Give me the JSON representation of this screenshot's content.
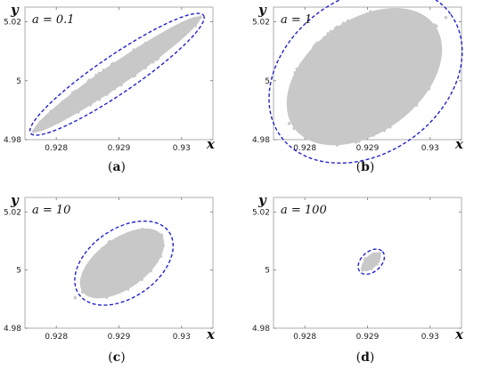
{
  "chart_data": [
    {
      "type": "scatter",
      "annotation": {
        "text": "a = 0.1"
      },
      "caption": {
        "text": "(a)",
        "letter": "a"
      },
      "xlabel": "x",
      "ylabel": "y",
      "xlim": [
        0.9275,
        0.9305
      ],
      "ylim": [
        4.98,
        5.025
      ],
      "xticks": [
        {
          "value": 0.928,
          "label": "0.928"
        },
        {
          "value": 0.929,
          "label": "0.929"
        },
        {
          "value": 0.93,
          "label": "0.93"
        }
      ],
      "yticks": [
        {
          "value": 4.98,
          "label": "4.98"
        },
        {
          "value": 5,
          "label": "5"
        },
        {
          "value": 5.02,
          "label": "5.02"
        }
      ],
      "grid": false,
      "cloud": {
        "center": [
          0.92897,
          5.0022
        ],
        "half_length": [
          0.00133,
          0.0194
        ],
        "half_width": 0.00018,
        "color": "#c8c8c8",
        "outliers": []
      },
      "ellipse": {
        "center": [
          0.92897,
          5.0022
        ],
        "half_length": [
          0.00138,
          0.02
        ],
        "half_width": 0.0003,
        "color": "#2222cc",
        "style": "dashed"
      }
    },
    {
      "type": "scatter",
      "annotation": {
        "text": "a = 1"
      },
      "caption": {
        "text": "(b)",
        "letter": "b"
      },
      "xlabel": "x",
      "ylabel": "y",
      "xlim": [
        0.9275,
        0.9305
      ],
      "ylim": [
        4.98,
        5.025
      ],
      "xticks": [
        {
          "value": 0.928,
          "label": "0.928"
        },
        {
          "value": 0.929,
          "label": "0.929"
        },
        {
          "value": 0.93,
          "label": "0.93"
        }
      ],
      "yticks": [
        {
          "value": 4.98,
          "label": "4.98"
        },
        {
          "value": 5,
          "label": "5"
        },
        {
          "value": 5.02,
          "label": "5.02"
        }
      ],
      "grid": false,
      "cloud": {
        "center": [
          0.92895,
          5.0014
        ],
        "half_length": [
          0.00112,
          0.0175
        ],
        "half_width": 0.0009,
        "color": "#c8c8c8",
        "outliers": [
          [
            0.92775,
            4.9855
          ],
          [
            0.93025,
            5.0215
          ],
          [
            0.9301,
            5.0185
          ]
        ]
      },
      "ellipse": {
        "center": [
          0.92897,
          5.0019
        ],
        "half_length": [
          0.00136,
          0.0206
        ],
        "half_width": 0.00125,
        "color": "#2222cc",
        "style": "dashed"
      }
    },
    {
      "type": "scatter",
      "annotation": {
        "text": "a = 10"
      },
      "caption": {
        "text": "(c)",
        "letter": "c"
      },
      "xlabel": "x",
      "ylabel": "y",
      "xlim": [
        0.9275,
        0.9305
      ],
      "ylim": [
        4.98,
        5.025
      ],
      "xticks": [
        {
          "value": 0.928,
          "label": "0.928"
        },
        {
          "value": 0.929,
          "label": "0.929"
        },
        {
          "value": 0.93,
          "label": "0.93"
        }
      ],
      "yticks": [
        {
          "value": 4.98,
          "label": "4.98"
        },
        {
          "value": 5,
          "label": "5"
        },
        {
          "value": 5.02,
          "label": "5.02"
        }
      ],
      "grid": false,
      "cloud": {
        "center": [
          0.92905,
          5.0023
        ],
        "half_length": [
          0.00063,
          0.0098
        ],
        "half_width": 0.0004,
        "color": "#c8c8c8",
        "outliers": [
          [
            0.9283,
            4.9905
          ]
        ]
      },
      "ellipse": {
        "center": [
          0.92908,
          5.0024
        ],
        "half_length": [
          0.00072,
          0.0107
        ],
        "half_width": 0.00055,
        "color": "#2222cc",
        "style": "dashed"
      }
    },
    {
      "type": "scatter",
      "annotation": {
        "text": "a = 100"
      },
      "caption": {
        "text": "(d)",
        "letter": "d"
      },
      "xlabel": "x",
      "ylabel": "y",
      "xlim": [
        0.9275,
        0.9305
      ],
      "ylim": [
        4.98,
        5.025
      ],
      "xticks": [
        {
          "value": 0.928,
          "label": "0.928"
        },
        {
          "value": 0.929,
          "label": "0.929"
        },
        {
          "value": 0.93,
          "label": "0.93"
        }
      ],
      "yticks": [
        {
          "value": 4.98,
          "label": "4.98"
        },
        {
          "value": 5,
          "label": "5"
        },
        {
          "value": 5.02,
          "label": "5.02"
        }
      ],
      "grid": false,
      "cloud": {
        "center": [
          0.92906,
          5.0029
        ],
        "half_length": [
          0.00014,
          0.0029
        ],
        "half_width": 0.0001,
        "color": "#c8c8c8",
        "outliers": []
      },
      "ellipse": {
        "center": [
          0.92906,
          5.0029
        ],
        "half_length": [
          0.00018,
          0.0035
        ],
        "half_width": 0.00016,
        "color": "#2222cc",
        "style": "dashed"
      }
    }
  ]
}
